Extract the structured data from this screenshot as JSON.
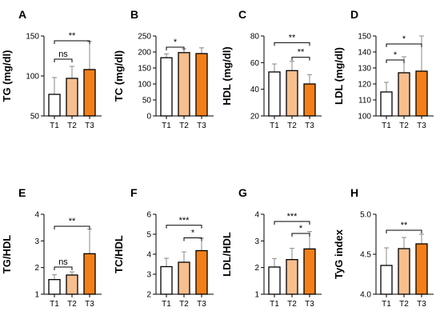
{
  "figure": {
    "colors": {
      "T1": "#ffffff",
      "T2": "#f7be8e",
      "T3": "#f47f18",
      "edge": "#000000",
      "error_bar": "#888888"
    }
  },
  "chart_data": [
    {
      "panel": "A",
      "type": "bar",
      "ylabel": "TG (mg/dl)",
      "categories": [
        "T1",
        "T2",
        "T3"
      ],
      "values": [
        77,
        97,
        108
      ],
      "errors": [
        21,
        15,
        35
      ],
      "ylim": [
        50,
        150
      ],
      "yticks": [
        "50",
        "100",
        "150"
      ],
      "ytick_values": [
        50,
        100,
        150
      ],
      "significance": [
        {
          "from": 0,
          "to": 2,
          "label": "**",
          "y": 144
        },
        {
          "from": 0,
          "to": 1,
          "label": "ns",
          "y": 121
        }
      ]
    },
    {
      "panel": "B",
      "type": "bar",
      "ylabel": "TC (mg/dl)",
      "categories": [
        "T1",
        "T2",
        "T3"
      ],
      "values": [
        182,
        198,
        195
      ],
      "errors": [
        12,
        12,
        18
      ],
      "ylim": [
        0,
        250
      ],
      "yticks": [
        "0",
        "50",
        "100",
        "150",
        "200",
        "250"
      ],
      "ytick_values": [
        0,
        50,
        100,
        150,
        200,
        250
      ],
      "significance": [
        {
          "from": 0,
          "to": 1,
          "label": "*",
          "y": 215
        }
      ]
    },
    {
      "panel": "C",
      "type": "bar",
      "ylabel": "HDL (mg/dl)",
      "categories": [
        "T1",
        "T2",
        "T3"
      ],
      "values": [
        53,
        54,
        44
      ],
      "errors": [
        6,
        7,
        7
      ],
      "ylim": [
        20,
        80
      ],
      "yticks": [
        "20",
        "40",
        "60",
        "80"
      ],
      "ytick_values": [
        20,
        40,
        60,
        80
      ],
      "significance": [
        {
          "from": 0,
          "to": 2,
          "label": "**",
          "y": 75
        },
        {
          "from": 1,
          "to": 2,
          "label": "**",
          "y": 64
        }
      ]
    },
    {
      "panel": "D",
      "type": "bar",
      "ylabel": "LDL (mg/dl)",
      "categories": [
        "T1",
        "T2",
        "T3"
      ],
      "values": [
        115,
        127,
        128
      ],
      "errors": [
        6,
        10,
        22
      ],
      "ylim": [
        100,
        150
      ],
      "yticks": [
        "100",
        "110",
        "120",
        "130",
        "140",
        "150"
      ],
      "ytick_values": [
        100,
        110,
        120,
        130,
        140,
        150
      ],
      "significance": [
        {
          "from": 0,
          "to": 2,
          "label": "*",
          "y": 145
        },
        {
          "from": 0,
          "to": 1,
          "label": "*",
          "y": 135
        }
      ]
    },
    {
      "panel": "E",
      "type": "bar",
      "ylabel": "TG/HDL",
      "categories": [
        "T1",
        "T2",
        "T3"
      ],
      "values": [
        1.55,
        1.72,
        2.52
      ],
      "errors": [
        0.18,
        0.12,
        0.92
      ],
      "ylim": [
        1,
        4
      ],
      "yticks": [
        "1",
        "2",
        "3",
        "4"
      ],
      "ytick_values": [
        1,
        2,
        3,
        4
      ],
      "significance": [
        {
          "from": 0,
          "to": 2,
          "label": "**",
          "y": 3.55
        },
        {
          "from": 0,
          "to": 1,
          "label": "ns",
          "y": 2.02
        }
      ]
    },
    {
      "panel": "F",
      "type": "bar",
      "ylabel": "TC/HDL",
      "categories": [
        "T1",
        "T2",
        "T3"
      ],
      "values": [
        3.38,
        3.6,
        4.18
      ],
      "errors": [
        0.42,
        0.52,
        0.62
      ],
      "ylim": [
        2,
        6
      ],
      "yticks": [
        "2",
        "3",
        "4",
        "5",
        "6"
      ],
      "ytick_values": [
        2,
        3,
        4,
        5,
        6
      ],
      "significance": [
        {
          "from": 0,
          "to": 2,
          "label": "***",
          "y": 5.45
        },
        {
          "from": 1,
          "to": 2,
          "label": "*",
          "y": 4.82
        }
      ]
    },
    {
      "panel": "G",
      "type": "bar",
      "ylabel": "LDL/HDL",
      "categories": [
        "T1",
        "T2",
        "T3"
      ],
      "values": [
        2.02,
        2.3,
        2.7
      ],
      "errors": [
        0.32,
        0.42,
        0.65
      ],
      "ylim": [
        1,
        4
      ],
      "yticks": [
        "1",
        "2",
        "3",
        "4"
      ],
      "ytick_values": [
        1,
        2,
        3,
        4
      ],
      "significance": [
        {
          "from": 0,
          "to": 2,
          "label": "***",
          "y": 3.73
        },
        {
          "from": 1,
          "to": 2,
          "label": "*",
          "y": 3.28
        }
      ]
    },
    {
      "panel": "H",
      "type": "bar",
      "ylabel": "TyG index",
      "categories": [
        "T1",
        "T2",
        "T3"
      ],
      "values": [
        4.36,
        4.57,
        4.63
      ],
      "errors": [
        0.22,
        0.14,
        0.12
      ],
      "ylim": [
        4.0,
        5.0
      ],
      "yticks": [
        "4.0",
        "4.5",
        "5.0"
      ],
      "ytick_values": [
        4.0,
        4.5,
        5.0
      ],
      "significance": [
        {
          "from": 0,
          "to": 2,
          "label": "**",
          "y": 4.8
        }
      ]
    }
  ]
}
